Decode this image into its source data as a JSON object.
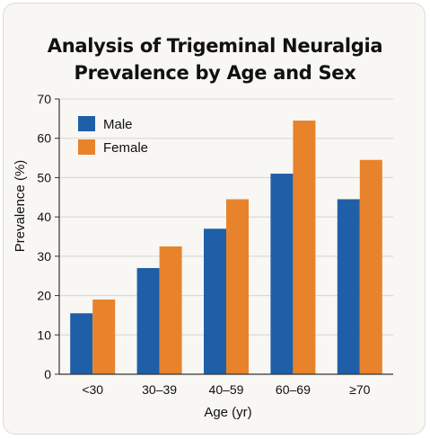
{
  "chart_data": {
    "type": "bar",
    "title_lines": [
      "Analysis of Trigeminal Neuralgia",
      "Prevalence by Age and Sex"
    ],
    "xlabel": "Age (yr)",
    "ylabel": "Prevalence (%)",
    "categories": [
      "<30",
      "30–39",
      "40–59",
      "60–69",
      "≥70"
    ],
    "series": [
      {
        "name": "Male",
        "color": "#1f5fa8",
        "values": [
          15.5,
          27,
          37,
          51,
          44.5
        ]
      },
      {
        "name": "Female",
        "color": "#e8832c",
        "values": [
          19,
          32.5,
          44.5,
          64.5,
          54.5
        ]
      }
    ],
    "ylim": [
      0,
      70
    ],
    "yticks": [
      0,
      10,
      20,
      30,
      40,
      50,
      60,
      70
    ],
    "grid": true,
    "legend": "top-left"
  }
}
